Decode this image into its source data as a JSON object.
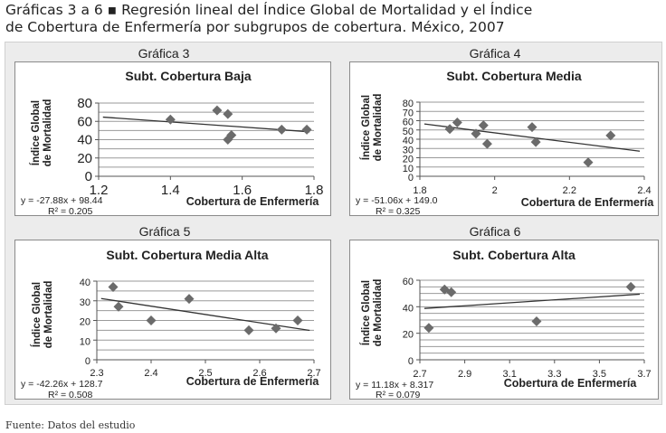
{
  "heading": {
    "line1": "Gráficas 3 a 6 ▪ Regresión lineal del Índice Global de Mortalidad y el Índice",
    "line2": "de Cobertura de Enfermería por subgrupos de cobertura. México, 2007"
  },
  "source": "Fuente: Datos del estudio",
  "colors": {
    "marker": "#6b6b6b",
    "trend": "#333333",
    "grid": "#9a9a9a",
    "panel_bg": "#ececec"
  },
  "chart_data": [
    {
      "type": "scatter",
      "label": "Gráfica 3",
      "title": "Subt. Cobertura Baja",
      "xlabel": "Cobertura de Enfermería",
      "ylabel": "Índice Global de Mortalidad",
      "xlim": [
        1.2,
        1.8
      ],
      "xticks": [
        1.2,
        1.4,
        1.6,
        1.8
      ],
      "xtick_labels": [
        "1.2",
        "1.4",
        "1.6",
        "1.8"
      ],
      "ylim": [
        0,
        80
      ],
      "yticks": [
        0,
        20,
        40,
        60,
        80
      ],
      "ytick_labels": [
        "0",
        "20",
        "40",
        "60",
        "80"
      ],
      "grid_step": 10,
      "points": [
        [
          1.4,
          62
        ],
        [
          1.53,
          72
        ],
        [
          1.56,
          68
        ],
        [
          1.56,
          40
        ],
        [
          1.57,
          45
        ],
        [
          1.71,
          51
        ],
        [
          1.78,
          51
        ]
      ],
      "trendline": {
        "slope": -27.88,
        "intercept": 98.44
      },
      "equation": "y = -27.88x + 98.44",
      "r2": "R² = 0.205"
    },
    {
      "type": "scatter",
      "label": "Gráfica 4",
      "title": "Subt. Cobertura Media",
      "xlabel": "Cobertura de Enfermería",
      "ylabel": "Índice Global de Mortalidad",
      "xlim": [
        1.8,
        2.4
      ],
      "xticks": [
        1.8,
        2.0,
        2.2,
        2.4
      ],
      "xtick_labels": [
        "1.8",
        "2",
        "2.2",
        "2.4"
      ],
      "ylim": [
        0,
        80
      ],
      "yticks": [
        0,
        10,
        20,
        30,
        40,
        50,
        60,
        70,
        80
      ],
      "ytick_labels": [
        "0",
        "10",
        "20",
        "30",
        "40",
        "50",
        "60",
        "70",
        "80"
      ],
      "grid_step": 10,
      "points": [
        [
          1.88,
          51
        ],
        [
          1.9,
          58
        ],
        [
          1.95,
          46
        ],
        [
          1.97,
          55
        ],
        [
          1.98,
          35
        ],
        [
          2.1,
          53
        ],
        [
          2.11,
          37
        ],
        [
          2.25,
          15
        ],
        [
          2.31,
          44
        ]
      ],
      "trendline": {
        "slope": -51.06,
        "intercept": 149.0
      },
      "equation": "y = -51.06x + 149.0",
      "r2": "R² = 0.325"
    },
    {
      "type": "scatter",
      "label": "Gráfica 5",
      "title": "Subt. Cobertura Media Alta",
      "xlabel": "Cobertura de Enfermería",
      "ylabel": "Índice Global de Mortalidad",
      "xlim": [
        2.3,
        2.7
      ],
      "xticks": [
        2.3,
        2.4,
        2.5,
        2.6,
        2.7
      ],
      "xtick_labels": [
        "2.3",
        "2.4",
        "2.5",
        "2.6",
        "2.7"
      ],
      "ylim": [
        0,
        40
      ],
      "yticks": [
        0,
        10,
        20,
        30,
        40
      ],
      "ytick_labels": [
        "0",
        "10",
        "20",
        "30",
        "40"
      ],
      "grid_step": 5,
      "points": [
        [
          2.33,
          37
        ],
        [
          2.34,
          27
        ],
        [
          2.4,
          20
        ],
        [
          2.47,
          31
        ],
        [
          2.58,
          15
        ],
        [
          2.63,
          16
        ],
        [
          2.67,
          20
        ]
      ],
      "trendline": {
        "slope": -42.26,
        "intercept": 128.7
      },
      "equation": "y = -42.26x + 128.7",
      "r2": "R² = 0.508"
    },
    {
      "type": "scatter",
      "label": "Gráfica 6",
      "title": "Subt. Cobertura Alta",
      "xlabel": "Cobertura de Enfermería",
      "ylabel": "Índice Global de Mortalidad",
      "xlim": [
        2.7,
        3.7
      ],
      "xticks": [
        2.7,
        2.9,
        3.1,
        3.3,
        3.5,
        3.7
      ],
      "xtick_labels": [
        "2.7",
        "2.9",
        "3.1",
        "3.3",
        "3.5",
        "3.7"
      ],
      "ylim": [
        0,
        60
      ],
      "yticks": [
        0,
        20,
        40,
        60
      ],
      "ytick_labels": [
        "0",
        "20",
        "40",
        "60"
      ],
      "grid_step": 5,
      "points": [
        [
          2.74,
          24
        ],
        [
          2.81,
          53
        ],
        [
          2.84,
          51
        ],
        [
          3.22,
          29
        ],
        [
          3.64,
          55
        ]
      ],
      "trendline": {
        "slope": 11.18,
        "intercept": 8.317
      },
      "equation": "y = 11.18x + 8.317",
      "r2": "R² = 0.079"
    }
  ]
}
